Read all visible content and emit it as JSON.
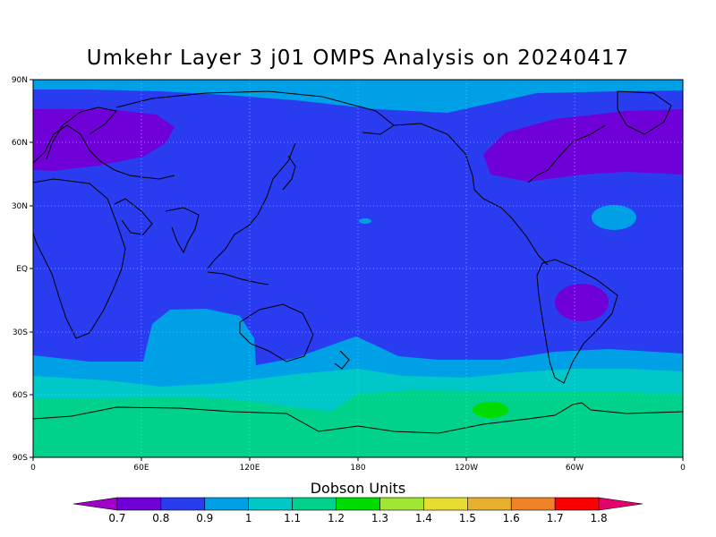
{
  "title": "Umkehr Layer 3 j01 OMPS Analysis on 20240417",
  "map": {
    "lat_ticks": [
      "90N",
      "60N",
      "30N",
      "EQ",
      "30S",
      "60S",
      "90S"
    ],
    "lon_ticks": [
      "0",
      "60E",
      "120E",
      "180",
      "120W",
      "60W",
      "0"
    ],
    "lon_range": [
      0,
      360
    ],
    "lat_range": [
      -90,
      90
    ],
    "grid": "dotted",
    "projection": "cylindrical"
  },
  "colorbar": {
    "title": "Dobson Units",
    "labels": [
      "0.7",
      "0.8",
      "0.9",
      "1",
      "1.1",
      "1.2",
      "1.3",
      "1.4",
      "1.5",
      "1.6",
      "1.7",
      "1.8"
    ],
    "colors": [
      "#a000c8",
      "#7000d8",
      "#2a3cf0",
      "#00a0e6",
      "#00c8c8",
      "#00d28c",
      "#00dc00",
      "#a0e632",
      "#e6dc32",
      "#e6af2d",
      "#f08228",
      "#fa0000",
      "#e6006e"
    ],
    "placement": "bottom"
  },
  "chart_data": {
    "type": "heatmap",
    "title": "Umkehr Layer 3 j01 OMPS Analysis on 20240417",
    "units": "Dobson Units",
    "regions": [
      {
        "level": "0.9-1.0",
        "color": "#00a0e6",
        "area": "Arctic polar cap (north of ~80N)"
      },
      {
        "level": "0.8-0.9",
        "color": "#2a3cf0",
        "area": "Tropics and mid-latitudes (background)"
      },
      {
        "level": "0.7-0.8",
        "color": "#7000d8",
        "area": "Northern Europe / Scandinavia (~55-75N, 0-60E)"
      },
      {
        "level": "0.7-0.8",
        "color": "#7000d8",
        "area": "Eastern North America / North Atlantic (~45-75N, 80W-0)"
      },
      {
        "level": "0.7-0.8",
        "color": "#7000d8",
        "area": "Central South America (~20S, 50W)"
      },
      {
        "level": "0.9-1.0",
        "color": "#00a0e6",
        "area": "Small patch over West Atlantic (~25N, 45W)"
      },
      {
        "level": "0.9-1.0",
        "color": "#00a0e6",
        "area": "Southern mid-latitudes (~35-50S)"
      },
      {
        "level": "1.0-1.1",
        "color": "#00c8c8",
        "area": "Southern Ocean (~50-60S)"
      },
      {
        "level": "1.1-1.2",
        "color": "#00d28c",
        "area": "Antarctica (south of ~60S)"
      },
      {
        "level": "1.2-1.3",
        "color": "#00dc00",
        "area": "Small patch near Antarctic Peninsula (~70S, 105W)"
      }
    ]
  }
}
